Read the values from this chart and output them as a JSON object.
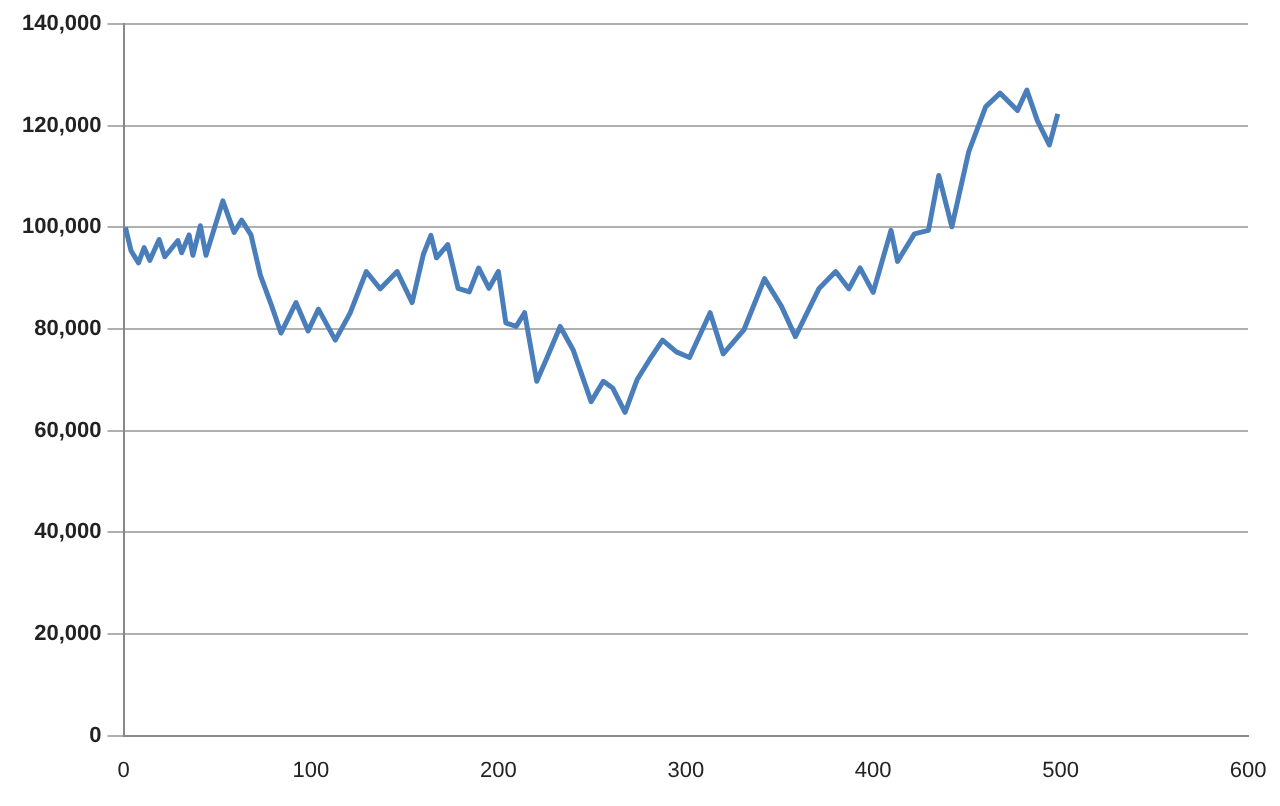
{
  "chart_data": {
    "type": "line",
    "grid": "y",
    "legend": false,
    "marker": "none",
    "line_style": "solid",
    "xlim": [
      0,
      600
    ],
    "xticks": [
      0,
      100,
      200,
      300,
      400,
      500,
      600
    ],
    "ylim": [
      0,
      140000
    ],
    "yticks": [
      {
        "value": 0,
        "label": "0"
      },
      {
        "value": 20000,
        "label": "20,000"
      },
      {
        "value": 40000,
        "label": "40,000"
      },
      {
        "value": 60000,
        "label": "60,000"
      },
      {
        "value": 80000,
        "label": "80,000"
      },
      {
        "value": 100000,
        "label": "100,000"
      },
      {
        "value": 120000,
        "label": "120,000"
      },
      {
        "value": 140000,
        "label": "140,000"
      }
    ],
    "series": [
      {
        "color": "#4a7ebb",
        "x": [
          1,
          4,
          8,
          11,
          14,
          19,
          22,
          29,
          31,
          35,
          37,
          41,
          44,
          53,
          59,
          63,
          68,
          73,
          79,
          84,
          92,
          98.5,
          104,
          113,
          121,
          129.5,
          137,
          146,
          154,
          160,
          164,
          167,
          173,
          178.5,
          184.5,
          189.5,
          195,
          200,
          204,
          209.5,
          214,
          220.5,
          226,
          233,
          240,
          249.5,
          256,
          261,
          267.6,
          274,
          280.4,
          287.6,
          295,
          302,
          313,
          320,
          331,
          342,
          351,
          358.5,
          371,
          380,
          387,
          393,
          400,
          409.5,
          413,
          422,
          429.5,
          435,
          442,
          451,
          460,
          467.7,
          477,
          482,
          487.6,
          494,
          498.5
        ],
        "values": [
          100000,
          95400,
          93000,
          96000,
          93500,
          97600,
          94200,
          97400,
          95000,
          98500,
          94500,
          100300,
          94500,
          105200,
          99000,
          101400,
          98500,
          90600,
          84600,
          79200,
          85200,
          79600,
          83900,
          77800,
          83200,
          91300,
          87900,
          91300,
          85200,
          94700,
          98400,
          94000,
          96600,
          88000,
          87300,
          92000,
          88000,
          91300,
          81200,
          80500,
          83200,
          69700,
          74400,
          80500,
          75800,
          65700,
          69700,
          68400,
          63600,
          70000,
          73800,
          77800,
          75500,
          74400,
          83200,
          75100,
          79800,
          89900,
          84500,
          78500,
          87900,
          91300,
          87900,
          92000,
          87200,
          99400,
          93300,
          98700,
          99400,
          110200,
          100100,
          114900,
          123700,
          126400,
          123000,
          127000,
          121000,
          116200,
          122300
        ]
      }
    ]
  }
}
